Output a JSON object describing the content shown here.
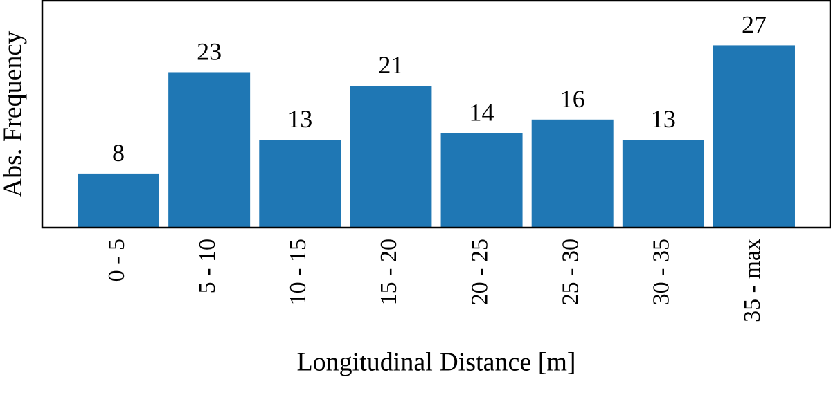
{
  "chart_data": {
    "type": "bar",
    "categories": [
      "0 - 5",
      "5 - 10",
      "10 - 15",
      "15 - 20",
      "20 - 25",
      "25 - 30",
      "30 - 35",
      "35 - max"
    ],
    "values": [
      8,
      23,
      13,
      21,
      14,
      16,
      13,
      27
    ],
    "color": "#1f77b4",
    "ylim": [
      0,
      33.6
    ],
    "xlabel": "Longitudinal Distance [m]",
    "ylabel": "Abs. Frequency"
  }
}
